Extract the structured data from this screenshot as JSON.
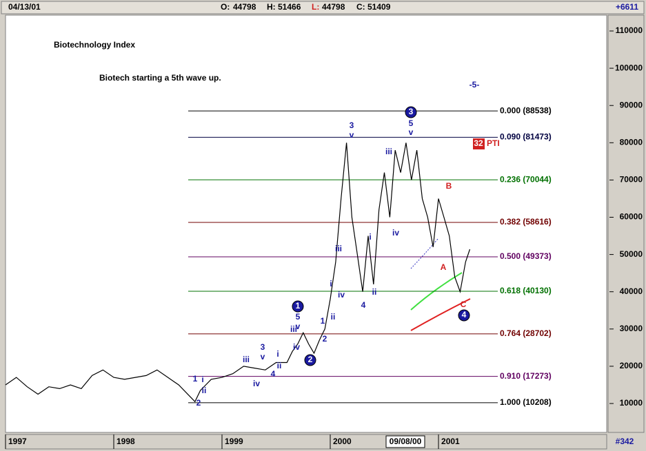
{
  "header": {
    "date": "04/13/01",
    "open": {
      "label": "O:",
      "value": 44798
    },
    "high": {
      "label": "H:",
      "value": 51466
    },
    "low": {
      "label": "L:",
      "value": 44798
    },
    "close": {
      "label": "C:",
      "value": 51409
    },
    "change": "+6611"
  },
  "footer": {
    "cursor_date": "09/08/00",
    "bar_count": "#342"
  },
  "chart_data": {
    "type": "line",
    "title": "Biotechnology Index",
    "subtitle": "Biotech starting a 5th wave up.",
    "x": [
      1997.0,
      1997.1,
      1997.2,
      1997.3,
      1997.4,
      1997.5,
      1997.6,
      1997.7,
      1997.8,
      1997.9,
      1998.0,
      1998.1,
      1998.2,
      1998.3,
      1998.4,
      1998.5,
      1998.6,
      1998.7,
      1998.75,
      1998.8,
      1998.85,
      1998.9,
      1999.0,
      1999.1,
      1999.2,
      1999.3,
      1999.4,
      1999.5,
      1999.6,
      1999.65,
      1999.7,
      1999.75,
      1999.8,
      1999.85,
      1999.9,
      1999.95,
      2000.0,
      2000.05,
      2000.1,
      2000.15,
      2000.2,
      2000.25,
      2000.3,
      2000.35,
      2000.4,
      2000.45,
      2000.5,
      2000.55,
      2000.6,
      2000.65,
      2000.7,
      2000.75,
      2000.8,
      2000.85,
      2000.9,
      2000.95,
      2001.0,
      2001.05,
      2001.1,
      2001.15,
      2001.2,
      2001.25,
      2001.29
    ],
    "series": [
      {
        "color": "#000000",
        "values": [
          15000,
          17000,
          14500,
          12500,
          14500,
          14000,
          15000,
          14000,
          17500,
          19000,
          17000,
          16500,
          17000,
          17500,
          19000,
          17000,
          15000,
          12000,
          10500,
          13500,
          15000,
          16500,
          17000,
          18000,
          20000,
          19500,
          19000,
          21000,
          21000,
          24000,
          26000,
          29000,
          26000,
          23500,
          27000,
          30000,
          38000,
          48000,
          65000,
          80000,
          60000,
          50000,
          40000,
          55000,
          42000,
          62000,
          72000,
          60000,
          78000,
          72000,
          80000,
          70000,
          78000,
          65000,
          60000,
          52000,
          65000,
          60000,
          55000,
          44000,
          40000,
          48000,
          51409
        ]
      }
    ],
    "xlim": [
      1997,
      2002.554
    ],
    "xticks": [
      1997,
      1998,
      1999,
      2000,
      2001
    ],
    "ylim": [
      2240,
      114250
    ],
    "yticks": [
      10000,
      20000,
      30000,
      40000,
      50000,
      60000,
      70000,
      80000,
      90000,
      100000,
      110000
    ],
    "fib_levels": [
      {
        "value": 88538,
        "label": "0.000 (88538)",
        "color": "#000000"
      },
      {
        "value": 81473,
        "label": "0.090 (81473)",
        "color": "#000040"
      },
      {
        "value": 70044,
        "label": "0.236 (70044)",
        "color": "#007000"
      },
      {
        "value": 58616,
        "label": "0.382 (58616)",
        "color": "#700000"
      },
      {
        "value": 49373,
        "label": "0.500 (49373)",
        "color": "#600060"
      },
      {
        "value": 40130,
        "label": "0.618 (40130)",
        "color": "#007000"
      },
      {
        "value": 28702,
        "label": "0.764 (28702)",
        "color": "#700000"
      },
      {
        "value": 17273,
        "label": "0.910 (17273)",
        "color": "#600060"
      },
      {
        "value": 10208,
        "label": "1.000 (10208)",
        "color": "#000000"
      }
    ],
    "wave_labels": [
      {
        "text": "1",
        "color": "#1a1aa0"
      },
      {
        "text": "i",
        "color": "#1a1aa0"
      },
      {
        "text": "ii",
        "color": "#1a1aa0"
      },
      {
        "text": "2",
        "color": "#1a1aa0"
      },
      {
        "text": "iii",
        "color": "#1a1aa0"
      },
      {
        "text": "iv",
        "color": "#1a1aa0"
      },
      {
        "text": "3",
        "color": "#1a1aa0"
      },
      {
        "text": "v",
        "color": "#1a1aa0"
      },
      {
        "text": "4",
        "color": "#1a1aa0"
      },
      {
        "text": "i",
        "color": "#1a1aa0"
      },
      {
        "text": "ii",
        "color": "#1a1aa0"
      },
      {
        "text": "1",
        "color": "#1a1aa0",
        "circled": true
      },
      {
        "text": "5",
        "color": "#1a1aa0"
      },
      {
        "text": "v",
        "color": "#1a1aa0"
      },
      {
        "text": "iii",
        "color": "#1a1aa0"
      },
      {
        "text": "iv",
        "color": "#1a1aa0"
      },
      {
        "text": "2",
        "color": "#1a1aa0",
        "circled": true
      },
      {
        "text": "1",
        "color": "#1a1aa0"
      },
      {
        "text": "2",
        "color": "#1a1aa0"
      },
      {
        "text": "ii",
        "color": "#1a1aa0"
      },
      {
        "text": "i",
        "color": "#1a1aa0"
      },
      {
        "text": "iv",
        "color": "#1a1aa0"
      },
      {
        "text": "iii",
        "color": "#1a1aa0"
      },
      {
        "text": "3",
        "color": "#1a1aa0"
      },
      {
        "text": "v",
        "color": "#1a1aa0"
      },
      {
        "text": "4",
        "color": "#1a1aa0"
      },
      {
        "text": "ii",
        "color": "#1a1aa0"
      },
      {
        "text": "i",
        "color": "#1a1aa0"
      },
      {
        "text": "iii",
        "color": "#1a1aa0"
      },
      {
        "text": "iv",
        "color": "#1a1aa0"
      },
      {
        "text": "3",
        "color": "#1a1aa0",
        "circled": true
      },
      {
        "text": "5",
        "color": "#1a1aa0"
      },
      {
        "text": "v",
        "color": "#1a1aa0"
      },
      {
        "text": "4",
        "color": "#1a1aa0",
        "circled": true
      },
      {
        "text": "-5-",
        "color": "#1a1aa0"
      },
      {
        "text": "B",
        "color": "#d02020"
      },
      {
        "text": "A",
        "color": "#d02020"
      },
      {
        "text": "C",
        "color": "#d02020"
      }
    ],
    "indicator": {
      "value": "32",
      "label": "PTI",
      "color": "#d02020"
    }
  }
}
